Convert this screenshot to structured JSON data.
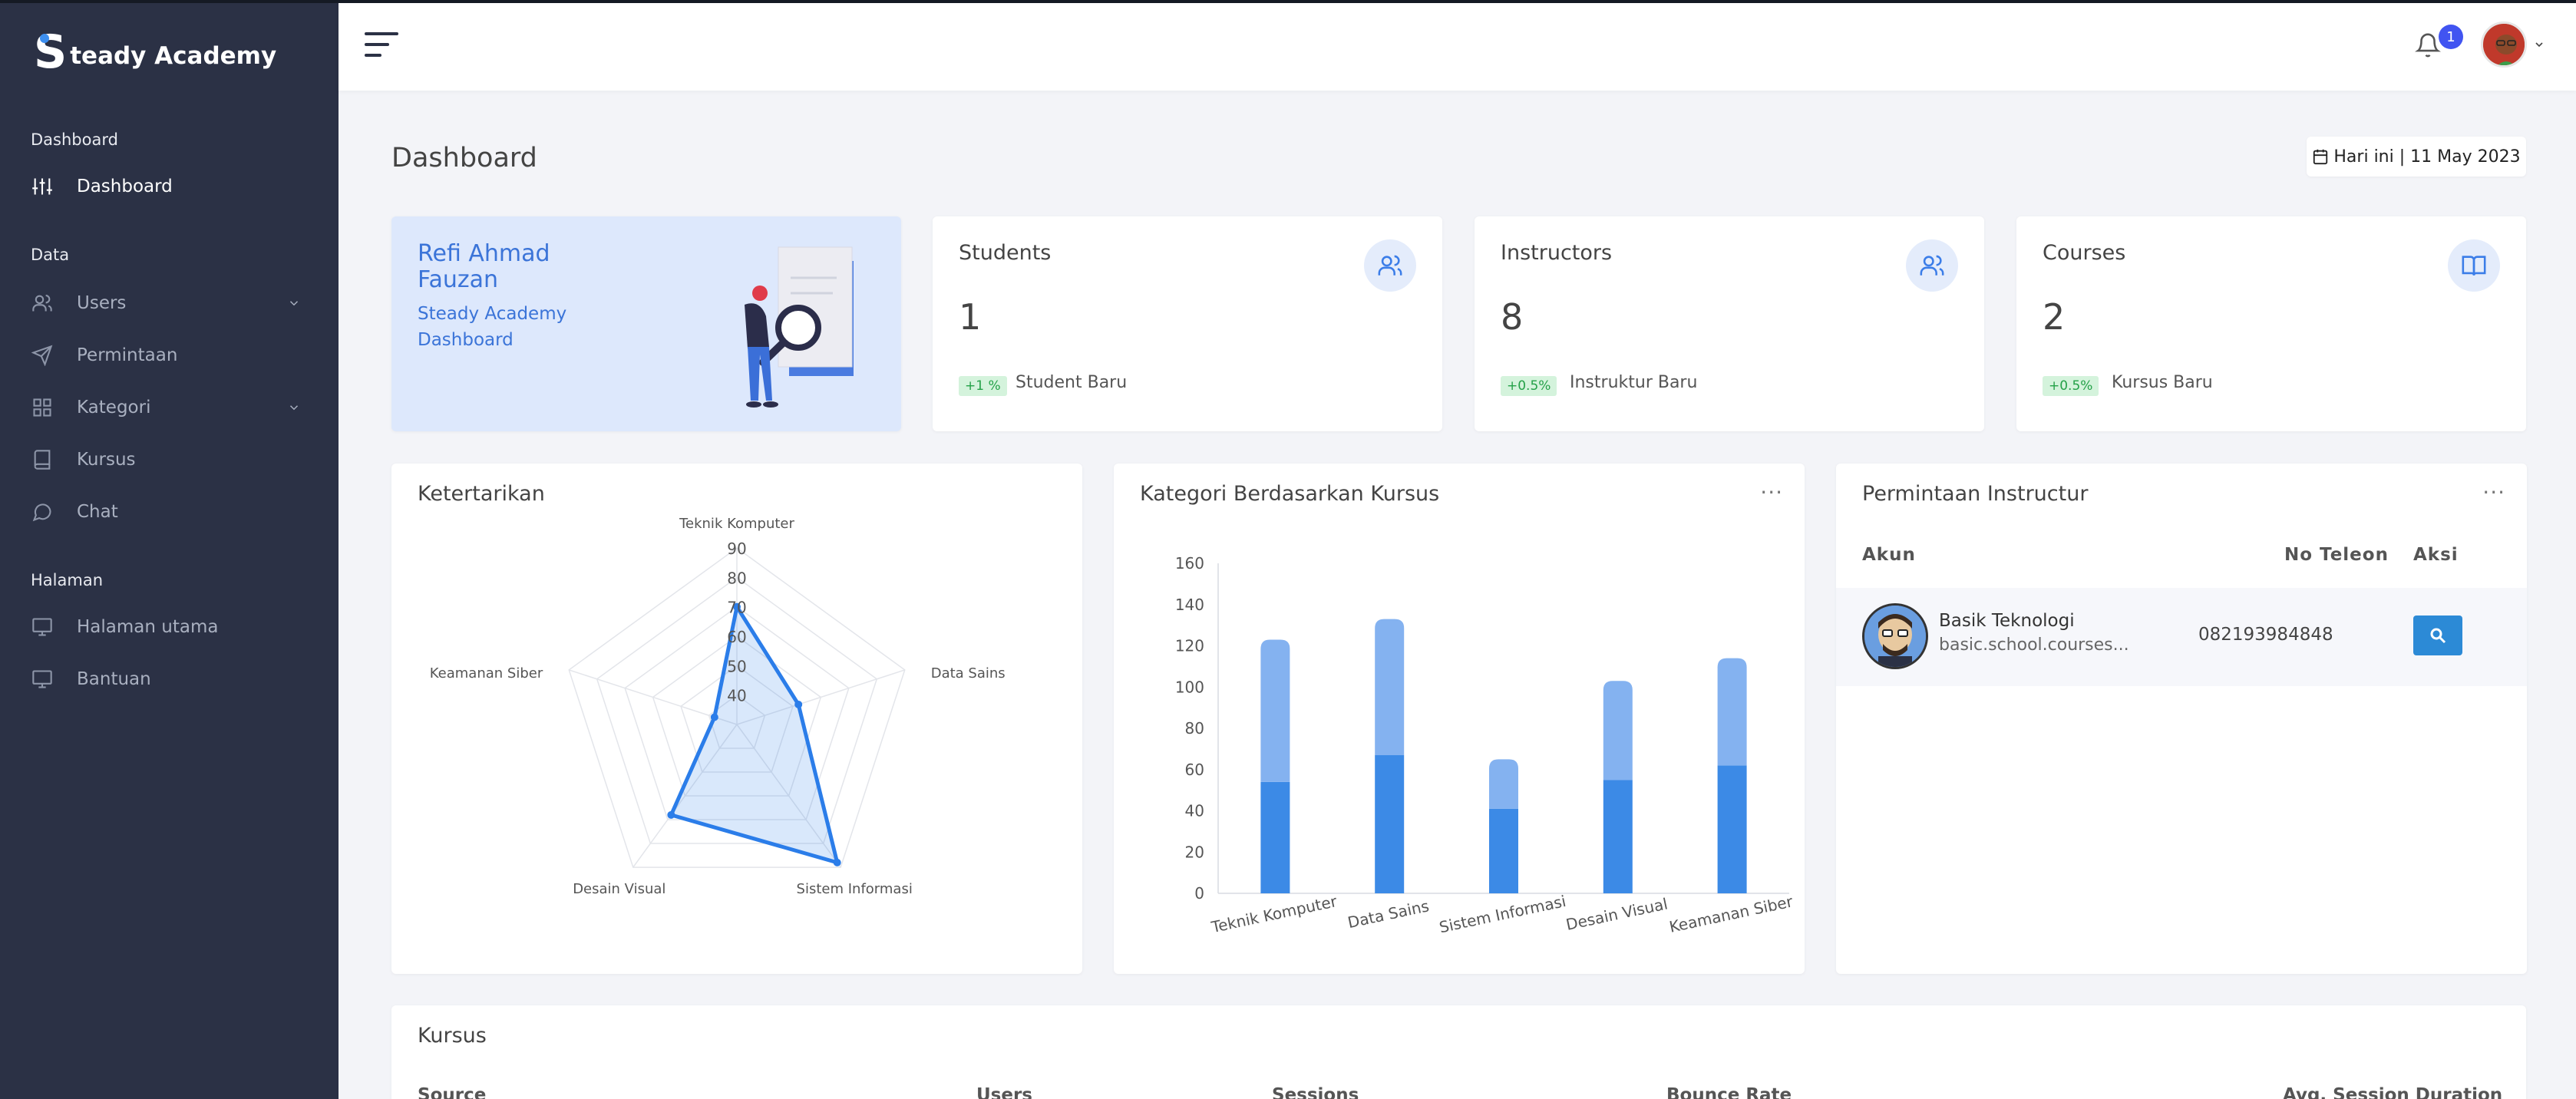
{
  "brand": {
    "initial": "S",
    "name": "teady Academy"
  },
  "sidebar": {
    "sections": [
      {
        "label": "Dashboard"
      },
      {
        "label": "Data"
      },
      {
        "label": "Halaman"
      }
    ],
    "items": [
      {
        "label": "Dashboard",
        "icon": "sliders-icon"
      },
      {
        "label": "Users",
        "icon": "users-icon"
      },
      {
        "label": "Permintaan",
        "icon": "send-icon"
      },
      {
        "label": "Kategori",
        "icon": "grid-icon"
      },
      {
        "label": "Kursus",
        "icon": "book-icon"
      },
      {
        "label": "Chat",
        "icon": "chat-icon"
      },
      {
        "label": "Halaman utama",
        "icon": "monitor-icon"
      },
      {
        "label": "Bantuan",
        "icon": "monitor-icon"
      }
    ]
  },
  "header": {
    "notification_count": "1"
  },
  "page": {
    "title": "Dashboard",
    "date_label": "Hari ini | 11 May 2023"
  },
  "welcome": {
    "name": "Refi Ahmad Fauzan",
    "subtitle": "Steady Academy Dashboard"
  },
  "stats": [
    {
      "title": "Students",
      "value": "1",
      "badge": "+1 %",
      "desc": "Student Baru",
      "icon": "users-icon"
    },
    {
      "title": "Instructors",
      "value": "8",
      "badge": "+0.5%",
      "desc": "Instruktur Baru",
      "icon": "users-icon"
    },
    {
      "title": "Courses",
      "value": "2",
      "badge": "+0.5%",
      "desc": "Kursus Baru",
      "icon": "book-open-icon"
    }
  ],
  "radar": {
    "title": "Ketertarikan"
  },
  "bar": {
    "title": "Kategori Berdasarkan Kursus",
    "menu": "···"
  },
  "requests": {
    "title": "Permintaan Instructur",
    "menu": "···",
    "columns": [
      "Akun",
      "No Teleon",
      "Aksi"
    ],
    "rows": [
      {
        "name": "Basik Teknologi",
        "email": "basic.school.courses...",
        "phone": "082193984848"
      }
    ]
  },
  "kursus": {
    "title": "Kursus",
    "columns": [
      "Source",
      "Users",
      "Sessions",
      "Bounce Rate",
      "Avg. Session Duration"
    ]
  },
  "chart_data": [
    {
      "type": "radar",
      "title": "Ketertarikan",
      "categories": [
        "Teknik Komputer",
        "Data Sains",
        "Sistem Informasi",
        "Desain Visual",
        "Keamanan Siber"
      ],
      "ticks": [
        "40",
        "50",
        "60",
        "70",
        "80",
        "90"
      ],
      "rlim": [
        30,
        90
      ],
      "series": [
        {
          "values": [
            70,
            52,
            88,
            68,
            38
          ]
        }
      ],
      "color": "#2b7de9"
    },
    {
      "type": "bar",
      "title": "Kategori Berdasarkan Kursus",
      "categories": [
        "Teknik Komputer",
        "Data Sains",
        "Sistem Informasi",
        "Desain Visual",
        "Keamanan Siber"
      ],
      "stacked": true,
      "series": [
        {
          "values": [
            54,
            67,
            41,
            55,
            62
          ],
          "color": "#3c8ae6"
        },
        {
          "values": [
            69,
            66,
            24,
            48,
            52
          ],
          "color": "#84b2f0"
        }
      ],
      "yticks": [
        "0",
        "20",
        "40",
        "60",
        "80",
        "100",
        "120",
        "140",
        "160"
      ],
      "ylim": [
        0,
        160
      ]
    }
  ]
}
